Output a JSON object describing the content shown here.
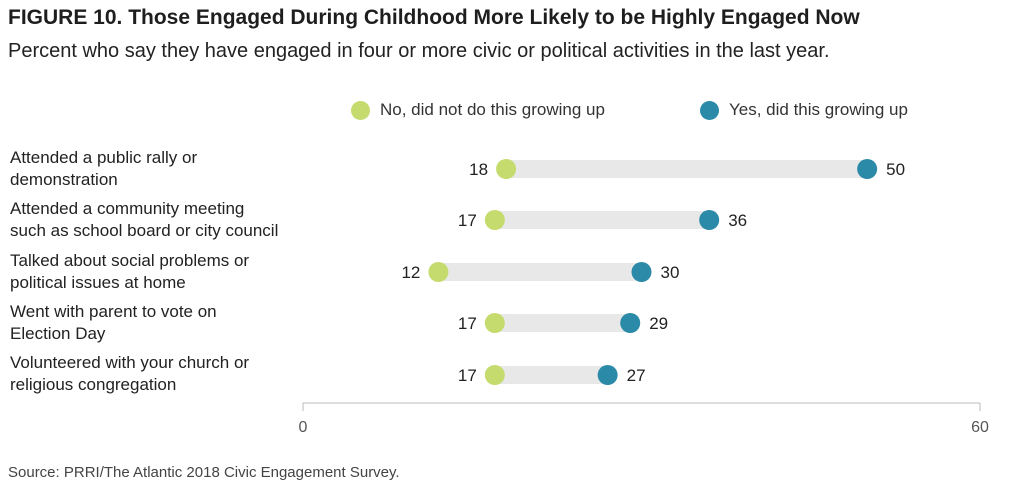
{
  "title": "FIGURE 10.  Those Engaged During Childhood More Likely to be Highly Engaged Now",
  "subtitle": "Percent who say they have engaged in four or more civic or political activities in the last year.",
  "source": "Source: PRRI/The Atlantic 2018 Civic Engagement Survey.",
  "colors": {
    "no": "#c5db6e",
    "yes": "#2b8aa8",
    "bar": "#e8e8e8",
    "axis": "#bbbbbb"
  },
  "chart_data": {
    "type": "dot",
    "title": "FIGURE 10.  Those Engaged During Childhood More Likely to be Highly Engaged Now",
    "subtitle": "Percent who say they have engaged in four or more civic or political activities in the last year.",
    "xlim": [
      0,
      60
    ],
    "xticks": [
      "0",
      "60"
    ],
    "legend": {
      "placement": "top"
    },
    "categories": [
      [
        "Attended a public rally or",
        "demonstration"
      ],
      [
        "Attended a community meeting",
        "such as school board or city council"
      ],
      [
        "Talked about social problems or",
        "political issues at home"
      ],
      [
        "Went with parent to vote on",
        "Election Day"
      ],
      [
        "Volunteered with your church or",
        "religious congregation"
      ]
    ],
    "series": [
      {
        "name": "No, did not do this growing up",
        "values": [
          18,
          17,
          12,
          17,
          17
        ]
      },
      {
        "name": "Yes, did this growing up",
        "values": [
          50,
          36,
          30,
          29,
          27
        ]
      }
    ]
  }
}
